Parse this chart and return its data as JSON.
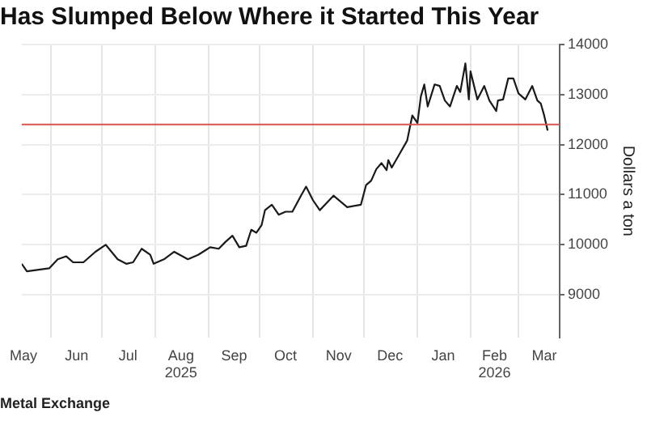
{
  "chart_data": {
    "type": "line",
    "title": "Has Slumped Below Where it Started This Year",
    "ylabel": "Dollars a ton",
    "annotations": [
      "Metal Exchange"
    ],
    "x": [
      "2025-05-15",
      "2025-05-18",
      "2025-05-31",
      "2025-06-05",
      "2025-06-10",
      "2025-06-14",
      "2025-06-20",
      "2025-06-27",
      "2025-07-03",
      "2025-07-10",
      "2025-07-15",
      "2025-07-19",
      "2025-07-24",
      "2025-07-29",
      "2025-07-31",
      "2025-08-06",
      "2025-08-12",
      "2025-08-20",
      "2025-08-26",
      "2025-09-02",
      "2025-09-07",
      "2025-09-11",
      "2025-09-15",
      "2025-09-19",
      "2025-09-23",
      "2025-09-26",
      "2025-09-29",
      "2025-10-02",
      "2025-10-04",
      "2025-10-08",
      "2025-10-12",
      "2025-10-16",
      "2025-10-20",
      "2025-10-25",
      "2025-10-28",
      "2025-11-01",
      "2025-11-05",
      "2025-11-13",
      "2025-11-21",
      "2025-11-29",
      "2025-12-02",
      "2025-12-05",
      "2025-12-08",
      "2025-12-11",
      "2025-12-14",
      "2025-12-15",
      "2025-12-17",
      "2025-12-22",
      "2025-12-26",
      "2025-12-29",
      "2026-01-01",
      "2026-01-03",
      "2026-01-05",
      "2026-01-07",
      "2026-01-11",
      "2026-01-14",
      "2026-01-17",
      "2026-01-20",
      "2026-01-24",
      "2026-01-26",
      "2026-01-29",
      "2026-01-31",
      "2026-02-01",
      "2026-02-05",
      "2026-02-09",
      "2026-02-12",
      "2026-02-16",
      "2026-02-17",
      "2026-02-20",
      "2026-02-23",
      "2026-02-26",
      "2026-03-01",
      "2026-03-05",
      "2026-03-09",
      "2026-03-12",
      "2026-03-14",
      "2026-03-16",
      "2026-03-18"
    ],
    "series": [
      {
        "color": "#1a1a1a",
        "values": [
          9620,
          9470,
          9530,
          9710,
          9770,
          9650,
          9650,
          9860,
          10000,
          9710,
          9620,
          9650,
          9920,
          9800,
          9620,
          9710,
          9860,
          9710,
          9800,
          9950,
          9920,
          10060,
          10180,
          9950,
          9980,
          10300,
          10240,
          10390,
          10690,
          10800,
          10600,
          10660,
          10660,
          10980,
          11160,
          10890,
          10690,
          10980,
          10750,
          10800,
          11190,
          11280,
          11510,
          11630,
          11490,
          11690,
          11540,
          11840,
          12080,
          12580,
          12430,
          12960,
          13200,
          12760,
          13200,
          13170,
          12880,
          12760,
          13170,
          13050,
          13620,
          12900,
          13460,
          12900,
          13170,
          12880,
          12670,
          12880,
          12900,
          13320,
          13320,
          13020,
          12900,
          13170,
          12880,
          12820,
          12580,
          12280
        ]
      }
    ],
    "xlim": [
      "2025-05-15",
      "2026-03-25"
    ],
    "xticks": [
      {
        "value": "2025-05-16",
        "label": "May"
      },
      {
        "value": "2025-06-01",
        "label": null
      },
      {
        "value": "2025-06-16",
        "label": "Jun"
      },
      {
        "value": "2025-07-01",
        "label": null
      },
      {
        "value": "2025-07-16",
        "label": "Jul"
      },
      {
        "value": "2025-08-01",
        "label": null
      },
      {
        "value": "2025-08-16",
        "label": "Aug\n2025"
      },
      {
        "value": "2025-09-01",
        "label": null
      },
      {
        "value": "2025-09-16",
        "label": "Sep"
      },
      {
        "value": "2025-10-01",
        "label": null
      },
      {
        "value": "2025-10-16",
        "label": "Oct"
      },
      {
        "value": "2025-11-01",
        "label": null
      },
      {
        "value": "2025-11-16",
        "label": "Nov"
      },
      {
        "value": "2025-12-01",
        "label": null
      },
      {
        "value": "2025-12-16",
        "label": "Dec"
      },
      {
        "value": "2026-01-01",
        "label": null
      },
      {
        "value": "2026-01-16",
        "label": "Jan"
      },
      {
        "value": "2026-02-01",
        "label": null
      },
      {
        "value": "2026-02-15",
        "label": "Feb\n2026"
      },
      {
        "value": "2026-03-01",
        "label": null
      },
      {
        "value": "2026-03-16",
        "label": "Mar"
      }
    ],
    "ylim": [
      8150,
      14000
    ],
    "yticks": [
      9000,
      10000,
      11000,
      12000,
      13000,
      14000
    ],
    "ref_lines": [
      {
        "axis": "y",
        "value": 12400,
        "color": "#d9534f"
      }
    ],
    "grid": true,
    "legend": false,
    "marker": "none",
    "line_style": "solid"
  }
}
